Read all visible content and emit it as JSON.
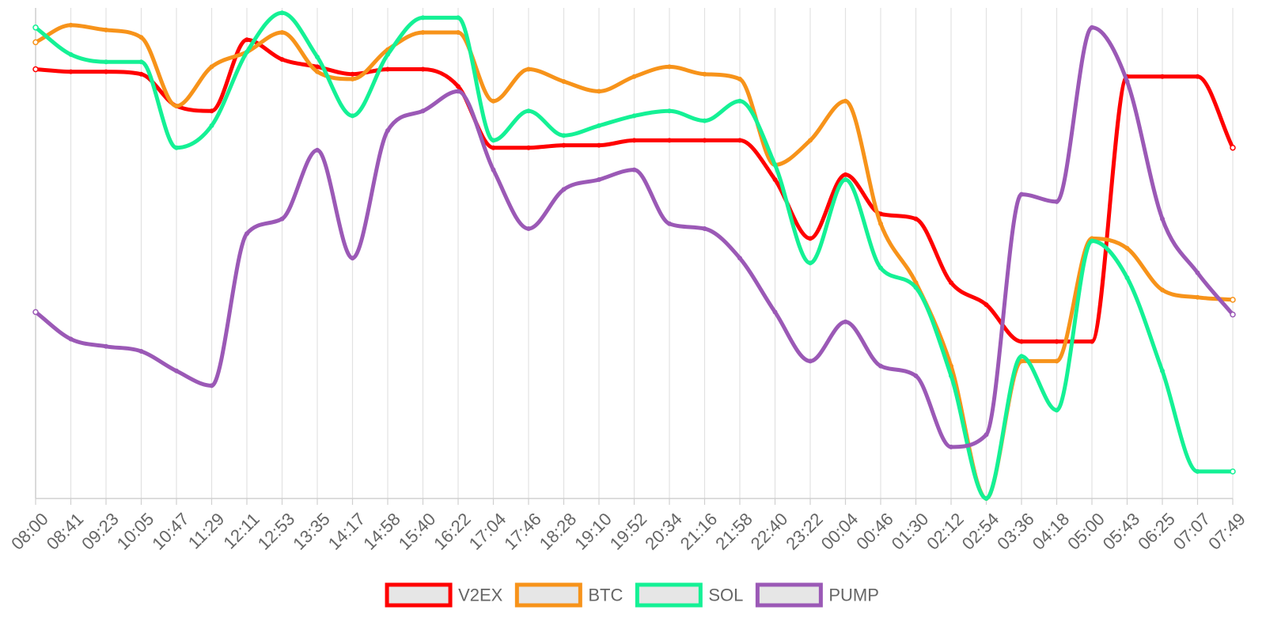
{
  "chart_data": {
    "type": "line",
    "title": "",
    "xlabel": "",
    "ylabel": "",
    "ylim": [
      0,
      100
    ],
    "grid": true,
    "legend_position": "bottom",
    "x": [
      "08:00",
      "08:41",
      "09:23",
      "10:05",
      "10:47",
      "11:29",
      "12:11",
      "12:53",
      "13:35",
      "14:17",
      "14:58",
      "15:40",
      "16:22",
      "17:04",
      "17:46",
      "18:28",
      "19:10",
      "19:52",
      "20:34",
      "21:16",
      "21:58",
      "22:40",
      "23:22",
      "00:04",
      "00:46",
      "01:30",
      "02:12",
      "02:54",
      "03:36",
      "04:18",
      "05:00",
      "05:43",
      "06:25",
      "07:07",
      "07:49"
    ],
    "series": [
      {
        "name": "V2EX",
        "color": "#ff0000",
        "values": [
          87.5,
          87,
          87,
          86.5,
          80,
          79,
          93.5,
          89.5,
          88,
          86.5,
          87.5,
          87.5,
          84,
          71.5,
          71.5,
          72,
          72,
          73,
          73,
          73,
          73,
          65,
          53,
          66,
          58,
          57,
          44,
          39.5,
          32,
          32,
          32,
          86,
          86,
          86,
          71.5
        ]
      },
      {
        "name": "BTC",
        "color": "#f7931a",
        "values": [
          93,
          96.5,
          95.5,
          94,
          80,
          88,
          91,
          95,
          87,
          85.5,
          91.5,
          95,
          95,
          81,
          87.5,
          85,
          83,
          86,
          88,
          86.5,
          85.5,
          68,
          73,
          81,
          56,
          44,
          27,
          0,
          28,
          28,
          53,
          51,
          42.5,
          41,
          40.5
        ]
      },
      {
        "name": "SOL",
        "color": "#14f195",
        "values": [
          96,
          90.5,
          89,
          89,
          71.5,
          76,
          91,
          99,
          90,
          78,
          90.5,
          98,
          98,
          73,
          79,
          74,
          76,
          78,
          79,
          77,
          81,
          68,
          48,
          65,
          47,
          43,
          25,
          0,
          29,
          18,
          52.5,
          45,
          26,
          5.5,
          5.5
        ]
      },
      {
        "name": "PUMP",
        "color": "#9b59b6",
        "values": [
          38,
          32.5,
          31,
          30,
          26,
          23,
          54,
          57,
          71,
          49,
          75,
          79,
          83,
          67,
          55,
          63,
          65,
          67,
          56,
          55,
          49,
          38,
          28,
          36,
          27,
          25,
          10.5,
          13,
          62,
          60.5,
          96,
          85,
          57,
          46,
          37.5
        ]
      }
    ]
  }
}
